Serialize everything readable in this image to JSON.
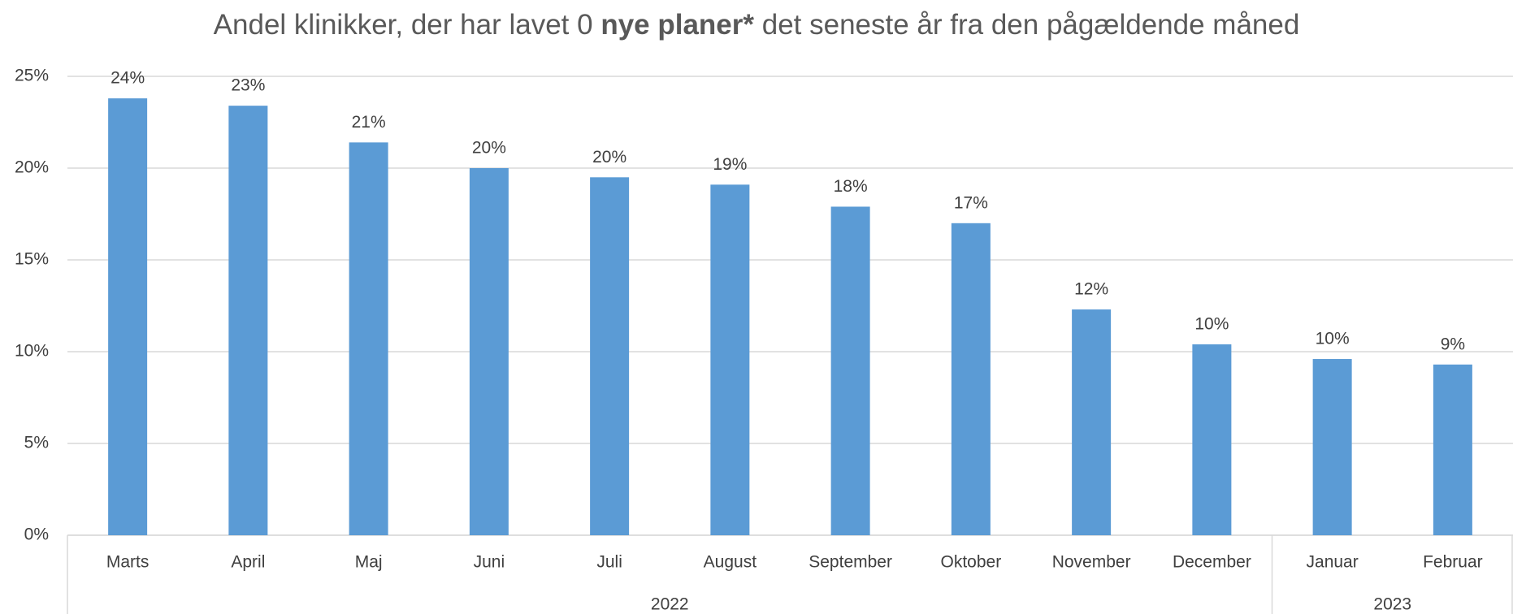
{
  "chart_data": {
    "type": "bar",
    "title_parts": [
      {
        "text": "Andel klinikker, der har lavet 0 ",
        "bold": false
      },
      {
        "text": "nye planer*",
        "bold": true
      },
      {
        "text": " det seneste år fra den pågældende måned",
        "bold": false
      }
    ],
    "categories": [
      "Marts",
      "April",
      "Maj",
      "Juni",
      "Juli",
      "August",
      "September",
      "Oktober",
      "November",
      "December",
      "Januar",
      "Februar"
    ],
    "values": [
      23.8,
      23.4,
      21.4,
      20.0,
      19.5,
      19.1,
      17.9,
      17.0,
      12.3,
      10.4,
      9.6,
      9.3
    ],
    "value_labels": [
      "24%",
      "23%",
      "21%",
      "20%",
      "20%",
      "19%",
      "18%",
      "17%",
      "12%",
      "10%",
      "10%",
      "9%"
    ],
    "x_groups": [
      {
        "label": "2022",
        "span": 10
      },
      {
        "label": "2023",
        "span": 2
      }
    ],
    "color": "#5b9bd5",
    "ylim": [
      0,
      25
    ],
    "yticks": [
      {
        "value": 0,
        "label": "0%"
      },
      {
        "value": 5,
        "label": "5%"
      },
      {
        "value": 10,
        "label": "10%"
      },
      {
        "value": 15,
        "label": "15%"
      },
      {
        "value": 20,
        "label": "20%"
      },
      {
        "value": 25,
        "label": "25%"
      }
    ],
    "grid": true
  }
}
